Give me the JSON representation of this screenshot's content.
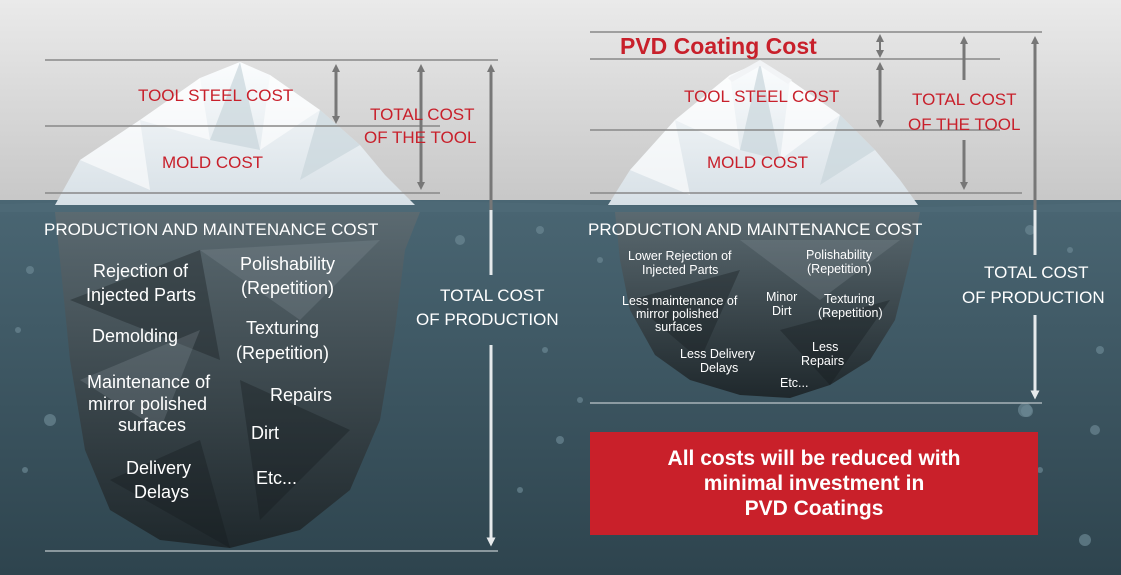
{
  "colors": {
    "sky_top": "#e9e9e9",
    "sky_bottom": "#c7c7c7",
    "water_top": "#456170",
    "water_bottom": "#2f4650",
    "accent_red": "#c8202b",
    "banner_red": "#c9202a",
    "lines": "#808080",
    "arrows_above": "#7a7a7a",
    "arrows_below": "#e9ecee"
  },
  "left": {
    "tool_steel_cost": "TOOL STEEL COST",
    "mold_cost": "MOLD COST",
    "total_cost_tool_line1": "TOTAL COST",
    "total_cost_tool_line2": "OF THE TOOL",
    "production_maintenance": "PRODUCTION AND MAINTENANCE COST",
    "total_production_line1": "TOTAL COST",
    "total_production_line2": "OF PRODUCTION",
    "items": {
      "rejection_1": "Rejection of",
      "rejection_2": "Injected Parts",
      "polish_1": "Polishability",
      "polish_2": "(Repetition)",
      "demolding": "Demolding",
      "texturing_1": "Texturing",
      "texturing_2": "(Repetition)",
      "maint_1": "Maintenance of",
      "maint_2": "mirror polished",
      "maint_3": "surfaces",
      "repairs": "Repairs",
      "dirt": "Dirt",
      "delivery_1": "Delivery",
      "delivery_2": "Delays",
      "etc": "Etc..."
    }
  },
  "right": {
    "pvd_coating_cost": "PVD Coating Cost",
    "tool_steel_cost": "TOOL STEEL COST",
    "mold_cost": "MOLD COST",
    "total_cost_tool_line1": "TOTAL COST",
    "total_cost_tool_line2": "OF THE TOOL",
    "production_maintenance": "PRODUCTION AND MAINTENANCE COST",
    "total_production_line1": "TOTAL COST",
    "total_production_line2": "OF PRODUCTION",
    "items": {
      "lower_rejection_1": "Lower Rejection of",
      "lower_rejection_2": "Injected Parts",
      "polish_1": "Polishability",
      "polish_2": "(Repetition)",
      "less_maint_1": "Less maintenance of",
      "less_maint_2": "mirror polished",
      "less_maint_3": "surfaces",
      "minor_1": "Minor",
      "minor_2": "Dirt",
      "texturing_1": "Texturing",
      "texturing_2": "(Repetition)",
      "less_delivery_1": "Less Delivery",
      "less_delivery_2": "Delays",
      "less_repairs_1": "Less",
      "less_repairs_2": "Repairs",
      "etc": "Etc..."
    },
    "banner": {
      "line1": "All costs will be reduced with",
      "line2": "minimal investment in",
      "line3": "PVD Coatings"
    }
  }
}
